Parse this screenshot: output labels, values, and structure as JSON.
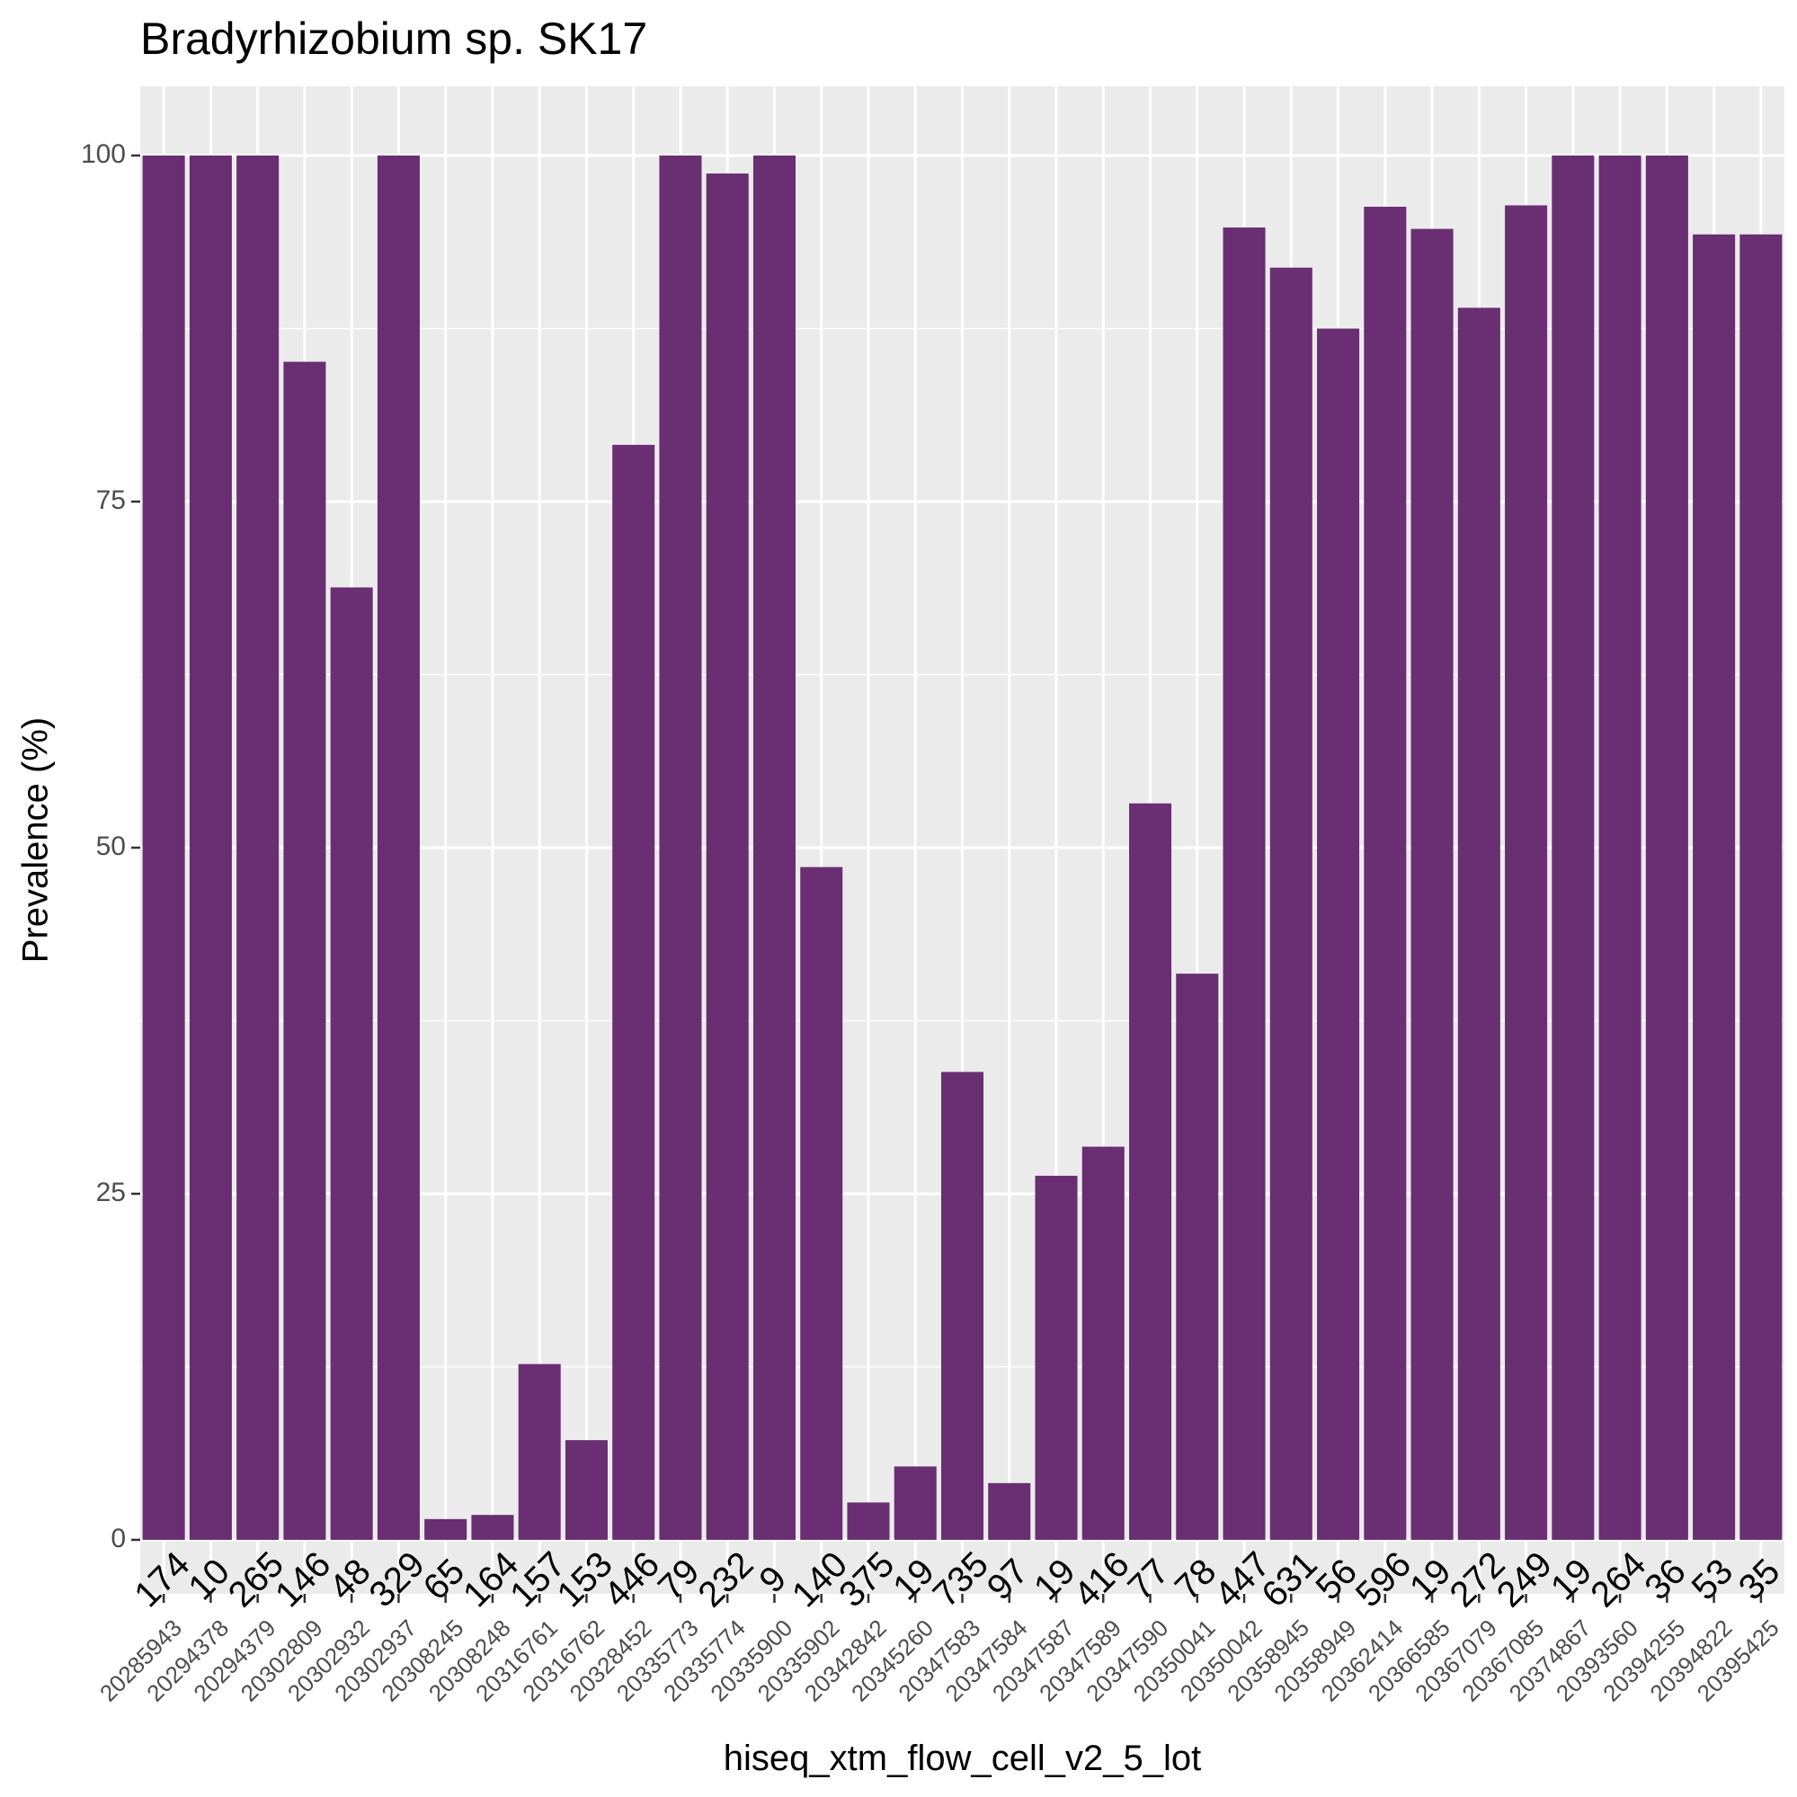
{
  "chart_data": {
    "type": "bar",
    "title": "Bradyrhizobium sp. SK17",
    "xlabel": "hiseq_xtm_flow_cell_v2_5_lot",
    "ylabel": "Prevalence (%)",
    "ylim": [
      -3.9,
      105
    ],
    "yticks": [
      0,
      25,
      50,
      75,
      100
    ],
    "grid": true,
    "bar_color": "#6A2E73",
    "panel_background": "#EBEBEB",
    "categories": [
      "20285943",
      "20294378",
      "20294379",
      "20302809",
      "20302932",
      "20302937",
      "20308245",
      "20308248",
      "20316761",
      "20316762",
      "20328452",
      "20335773",
      "20335774",
      "20335900",
      "20335902",
      "20342842",
      "20345260",
      "20347583",
      "20347584",
      "20347587",
      "20347589",
      "20347590",
      "20350041",
      "20350042",
      "20358945",
      "20358949",
      "20362414",
      "20366585",
      "20367079",
      "20367085",
      "20374867",
      "20393560",
      "20394255",
      "20394822",
      "20395425"
    ],
    "values": [
      100,
      100,
      100,
      85.1,
      68.8,
      100,
      1.5,
      1.8,
      12.7,
      7.2,
      79.1,
      100,
      98.7,
      100,
      48.6,
      2.7,
      5.3,
      33.8,
      4.1,
      26.3,
      28.4,
      53.2,
      40.9,
      94.8,
      91.9,
      87.5,
      96.3,
      94.7,
      89.0,
      96.4,
      100,
      100,
      100,
      94.3,
      94.3
    ],
    "bar_labels": [
      "174",
      "10",
      "265",
      "146",
      "48",
      "329",
      "65",
      "164",
      "157",
      "153",
      "446",
      "79",
      "232",
      "9",
      "140",
      "375",
      "19",
      "735",
      "97",
      "19",
      "416",
      "77",
      "78",
      "447",
      "631",
      "56",
      "596",
      "19",
      "272",
      "249",
      "19",
      "264",
      "36",
      "53",
      "35"
    ]
  }
}
